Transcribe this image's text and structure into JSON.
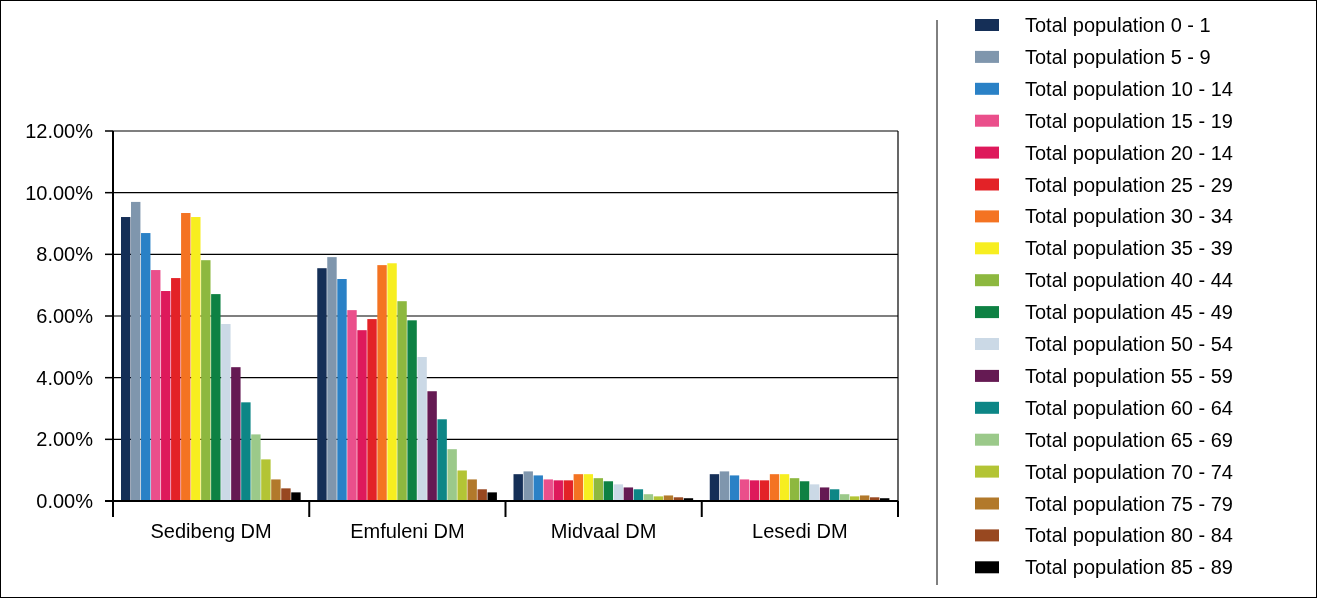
{
  "chart_data": {
    "type": "bar",
    "categories": [
      "Sedibeng DM",
      "Emfuleni DM",
      "Midvaal DM",
      "Lesedi DM"
    ],
    "ylim": [
      0,
      12
    ],
    "yticks": [
      {
        "value": 0,
        "label": "0.00%"
      },
      {
        "value": 2,
        "label": "2.00%"
      },
      {
        "value": 4,
        "label": "4.00%"
      },
      {
        "value": 6,
        "label": "6.00%"
      },
      {
        "value": 8,
        "label": "8.00%"
      },
      {
        "value": 10,
        "label": "10.00%"
      },
      {
        "value": 12,
        "label": "12.00%"
      }
    ],
    "grid": "y",
    "legend": "right",
    "series": [
      {
        "name": "Total population 0 - 1",
        "color": "#152f57",
        "values": [
          9.21,
          7.55,
          0.87,
          0.87
        ]
      },
      {
        "name": "Total population 5 - 9",
        "color": "#7f96ad",
        "values": [
          9.7,
          7.91,
          0.96,
          0.96
        ]
      },
      {
        "name": "Total population 10 - 14",
        "color": "#2a81c6",
        "values": [
          8.69,
          7.2,
          0.83,
          0.83
        ]
      },
      {
        "name": "Total population 15 - 19",
        "color": "#ea4f8b",
        "values": [
          7.49,
          6.19,
          0.7,
          0.7
        ]
      },
      {
        "name": "Total population 20 - 14",
        "color": "#de195b",
        "values": [
          6.81,
          5.54,
          0.67,
          0.67
        ]
      },
      {
        "name": "Total population 25 - 29",
        "color": "#e32227",
        "values": [
          7.23,
          5.9,
          0.67,
          0.67
        ]
      },
      {
        "name": "Total population 30 - 34",
        "color": "#f47322",
        "values": [
          9.34,
          7.65,
          0.87,
          0.87
        ]
      },
      {
        "name": "Total population 35 - 39",
        "color": "#f7ee20",
        "values": [
          9.21,
          7.71,
          0.87,
          0.87
        ]
      },
      {
        "name": "Total population 40 - 44",
        "color": "#8db83f",
        "values": [
          7.81,
          6.48,
          0.74,
          0.74
        ]
      },
      {
        "name": "Total population 45 - 49",
        "color": "#0e8143",
        "values": [
          6.71,
          5.86,
          0.64,
          0.64
        ]
      },
      {
        "name": "Total population 50 - 54",
        "color": "#cbd9e6",
        "values": [
          5.74,
          4.67,
          0.54,
          0.54
        ]
      },
      {
        "name": "Total population 55 - 59",
        "color": "#651a53",
        "values": [
          4.34,
          3.56,
          0.44,
          0.44
        ]
      },
      {
        "name": "Total population 60 - 64",
        "color": "#0d8686",
        "values": [
          3.2,
          2.65,
          0.38,
          0.38
        ]
      },
      {
        "name": "Total population 65 - 69",
        "color": "#9bc98a",
        "values": [
          2.16,
          1.68,
          0.22,
          0.22
        ]
      },
      {
        "name": "Total population 70 - 74",
        "color": "#b3c435",
        "values": [
          1.35,
          0.99,
          0.15,
          0.15
        ]
      },
      {
        "name": "Total population 75 - 79",
        "color": "#b2792b",
        "values": [
          0.7,
          0.7,
          0.18,
          0.18
        ]
      },
      {
        "name": "Total population 80 - 84",
        "color": "#984820",
        "values": [
          0.41,
          0.38,
          0.12,
          0.12
        ]
      },
      {
        "name": "Total population 85 - 89",
        "color": "#000000",
        "values": [
          0.28,
          0.28,
          0.09,
          0.09
        ]
      }
    ]
  }
}
